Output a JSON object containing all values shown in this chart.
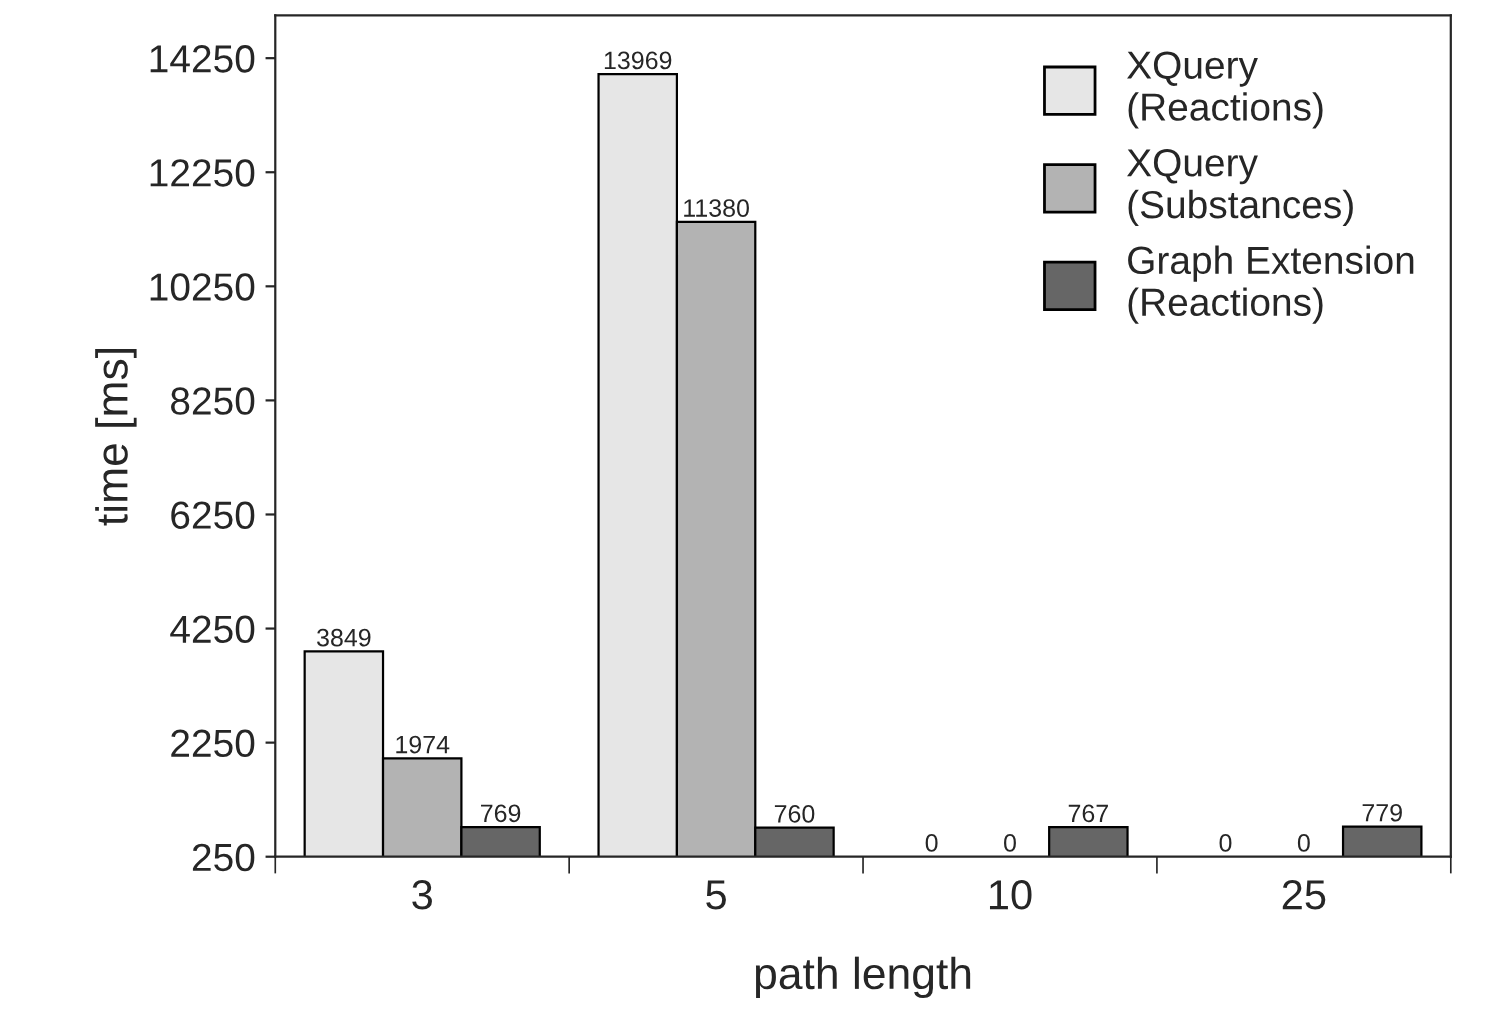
{
  "chart_data": {
    "type": "bar",
    "xlabel": "path length",
    "ylabel": "time [ms]",
    "categories": [
      "3",
      "5",
      "10",
      "25"
    ],
    "series": [
      {
        "name": "XQuery\n(Reactions)",
        "color": "#e6e6e6",
        "values": [
          3849,
          13969,
          null,
          null
        ],
        "value_labels": [
          "3849",
          "13969",
          "0",
          "0"
        ]
      },
      {
        "name": "XQuery\n(Substances)",
        "color": "#b3b3b3",
        "values": [
          1974,
          11380,
          null,
          null
        ],
        "value_labels": [
          "1974",
          "11380",
          "0",
          "0"
        ]
      },
      {
        "name": "Graph Extension\n(Reactions)",
        "color": "#666666",
        "values": [
          769,
          760,
          767,
          779
        ],
        "value_labels": [
          "769",
          "760",
          "767",
          "779"
        ]
      }
    ],
    "ylim": [
      250,
      15000
    ],
    "yticks": [
      250,
      2250,
      4250,
      6250,
      8250,
      10250,
      12250,
      14250
    ],
    "legend": "top right",
    "grid": false
  }
}
